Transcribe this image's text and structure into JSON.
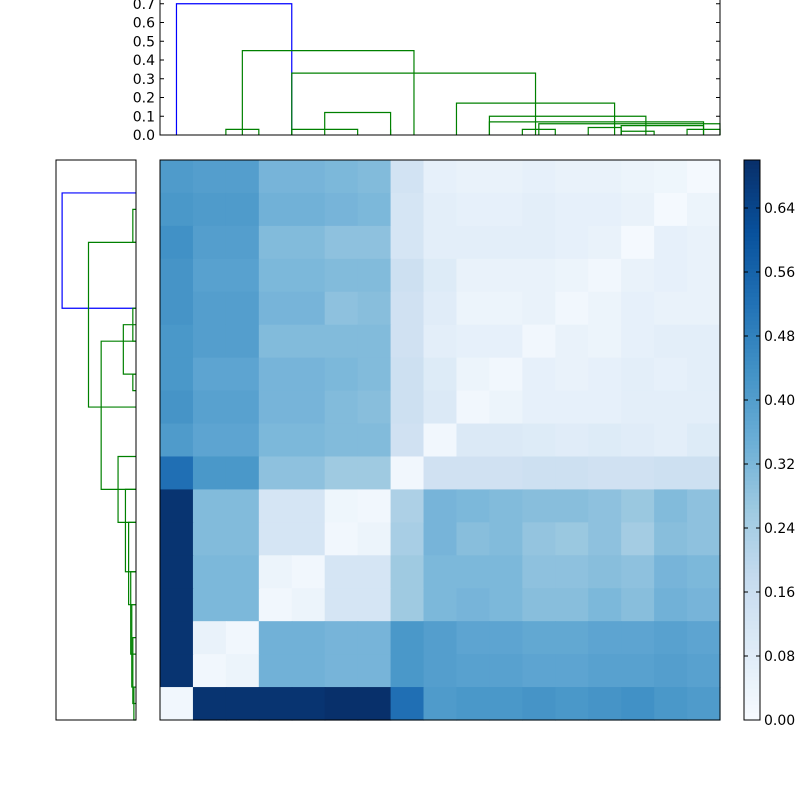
{
  "chart_data": [
    {
      "type": "dendrogram",
      "orientation": "top",
      "yticks": [
        "0.0",
        "0.1",
        "0.2",
        "0.3",
        "0.4",
        "0.5",
        "0.6",
        "0.7"
      ],
      "ylim": [
        0,
        0.72
      ],
      "colors": {
        "root": "#0000ff",
        "cluster": "#008000"
      },
      "leaf_count": 17,
      "links": [
        {
          "left": 0.0,
          "right": 3.5,
          "height": 0.7,
          "color": "root"
        },
        {
          "left": 2.0,
          "right": 7.21,
          "height": 0.45,
          "color": "cluster"
        },
        {
          "left": 1.5,
          "right": 2.5,
          "height": 0.03,
          "color": "cluster"
        },
        {
          "left": 3.5,
          "right": 10.9,
          "height": 0.33,
          "color": "cluster"
        },
        {
          "left": 3.5,
          "right": 5.5,
          "height": 0.03,
          "color": "cluster"
        },
        {
          "left": 4.5,
          "right": 6.5,
          "height": 0.12,
          "color": "cluster"
        },
        {
          "left": 6.5,
          "right": 6.5,
          "height": 0.03,
          "color": "cluster"
        },
        {
          "left": 8.5,
          "right": 13.3,
          "height": 0.17,
          "color": "cluster"
        },
        {
          "left": 9.5,
          "right": 14.25,
          "height": 0.1,
          "color": "cluster"
        },
        {
          "left": 9.5,
          "right": 16.0,
          "height": 0.07,
          "color": "cluster"
        },
        {
          "left": 11.0,
          "right": 16.5,
          "height": 0.06,
          "color": "cluster"
        },
        {
          "left": 13.5,
          "right": 16.0,
          "height": 0.05,
          "color": "cluster"
        },
        {
          "left": 10.5,
          "right": 11.5,
          "height": 0.03,
          "color": "cluster"
        },
        {
          "left": 12.5,
          "right": 13.5,
          "height": 0.04,
          "color": "cluster"
        },
        {
          "left": 13.5,
          "right": 14.5,
          "height": 0.02,
          "color": "cluster"
        },
        {
          "left": 15.5,
          "right": 16.5,
          "height": 0.03,
          "color": "cluster"
        }
      ]
    },
    {
      "type": "dendrogram",
      "orientation": "left",
      "colors": {
        "root": "#0000ff",
        "cluster": "#008000"
      },
      "leaf_count": 17,
      "links": [
        {
          "left": 0.5,
          "right": 4.0,
          "height": 0.7,
          "color": "root"
        },
        {
          "left": 2.0,
          "right": 7.0,
          "height": 0.45,
          "color": "cluster"
        },
        {
          "left": 1.0,
          "right": 2.0,
          "height": 0.03,
          "color": "cluster"
        },
        {
          "left": 5.0,
          "right": 9.5,
          "height": 0.33,
          "color": "cluster"
        },
        {
          "left": 4.5,
          "right": 6.0,
          "height": 0.12,
          "color": "cluster"
        },
        {
          "left": 4.0,
          "right": 5.0,
          "height": 0.03,
          "color": "cluster"
        },
        {
          "left": 6.0,
          "right": 6.5,
          "height": 0.03,
          "color": "cluster"
        },
        {
          "left": 8.5,
          "right": 10.5,
          "height": 0.17,
          "color": "cluster"
        },
        {
          "left": 9.5,
          "right": 12.0,
          "height": 0.1,
          "color": "cluster"
        },
        {
          "left": 10.5,
          "right": 13.0,
          "height": 0.07,
          "color": "cluster"
        },
        {
          "left": 12.0,
          "right": 14.5,
          "height": 0.05,
          "color": "cluster"
        },
        {
          "left": 13.0,
          "right": 15.5,
          "height": 0.04,
          "color": "cluster"
        },
        {
          "left": 14.0,
          "right": 16.0,
          "height": 0.03,
          "color": "cluster"
        },
        {
          "left": 15.5,
          "right": 16.5,
          "height": 0.02,
          "color": "cluster"
        }
      ]
    },
    {
      "type": "heatmap",
      "colormap": "Blues",
      "vmin": 0,
      "vmax": 0.7,
      "colorbar_ticks": [
        "0.00",
        "0.08",
        "0.16",
        "0.24",
        "0.32",
        "0.40",
        "0.48",
        "0.56",
        "0.64"
      ],
      "rows": [
        [
          0.41,
          0.4,
          0.4,
          0.33,
          0.33,
          0.32,
          0.31,
          0.13,
          0.06,
          0.05,
          0.05,
          0.06,
          0.05,
          0.05,
          0.04,
          0.03,
          0.01
        ],
        [
          0.42,
          0.41,
          0.41,
          0.34,
          0.34,
          0.33,
          0.32,
          0.12,
          0.07,
          0.06,
          0.06,
          0.07,
          0.06,
          0.06,
          0.05,
          0.01,
          0.04
        ],
        [
          0.44,
          0.4,
          0.4,
          0.31,
          0.31,
          0.29,
          0.29,
          0.12,
          0.07,
          0.07,
          0.07,
          0.07,
          0.06,
          0.05,
          0.01,
          0.06,
          0.05
        ],
        [
          0.43,
          0.39,
          0.39,
          0.32,
          0.32,
          0.31,
          0.31,
          0.15,
          0.09,
          0.05,
          0.05,
          0.05,
          0.04,
          0.02,
          0.05,
          0.06,
          0.05
        ],
        [
          0.43,
          0.4,
          0.4,
          0.33,
          0.33,
          0.29,
          0.3,
          0.14,
          0.08,
          0.04,
          0.04,
          0.05,
          0.02,
          0.04,
          0.06,
          0.05,
          0.05
        ],
        [
          0.42,
          0.4,
          0.4,
          0.31,
          0.31,
          0.31,
          0.31,
          0.14,
          0.07,
          0.06,
          0.06,
          0.02,
          0.05,
          0.04,
          0.06,
          0.07,
          0.07
        ],
        [
          0.42,
          0.38,
          0.38,
          0.33,
          0.33,
          0.32,
          0.31,
          0.15,
          0.09,
          0.04,
          0.02,
          0.06,
          0.05,
          0.06,
          0.07,
          0.06,
          0.07
        ],
        [
          0.43,
          0.39,
          0.39,
          0.33,
          0.33,
          0.31,
          0.3,
          0.15,
          0.1,
          0.02,
          0.04,
          0.06,
          0.06,
          0.06,
          0.07,
          0.07,
          0.07
        ],
        [
          0.41,
          0.38,
          0.38,
          0.32,
          0.32,
          0.31,
          0.31,
          0.14,
          0.02,
          0.1,
          0.1,
          0.09,
          0.08,
          0.09,
          0.08,
          0.07,
          0.09
        ],
        [
          0.53,
          0.42,
          0.42,
          0.29,
          0.29,
          0.26,
          0.26,
          0.02,
          0.14,
          0.14,
          0.14,
          0.15,
          0.15,
          0.14,
          0.14,
          0.15,
          0.15
        ],
        [
          0.69,
          0.31,
          0.31,
          0.12,
          0.12,
          0.03,
          0.02,
          0.23,
          0.33,
          0.32,
          0.31,
          0.3,
          0.3,
          0.29,
          0.27,
          0.31,
          0.29
        ],
        [
          0.69,
          0.31,
          0.31,
          0.12,
          0.12,
          0.02,
          0.04,
          0.24,
          0.33,
          0.3,
          0.31,
          0.28,
          0.27,
          0.29,
          0.25,
          0.3,
          0.29
        ],
        [
          0.69,
          0.32,
          0.32,
          0.04,
          0.02,
          0.12,
          0.12,
          0.26,
          0.32,
          0.32,
          0.32,
          0.29,
          0.29,
          0.3,
          0.29,
          0.33,
          0.32
        ],
        [
          0.69,
          0.32,
          0.32,
          0.02,
          0.04,
          0.12,
          0.12,
          0.26,
          0.32,
          0.33,
          0.32,
          0.3,
          0.3,
          0.32,
          0.3,
          0.34,
          0.33
        ],
        [
          0.69,
          0.05,
          0.02,
          0.34,
          0.34,
          0.33,
          0.33,
          0.42,
          0.4,
          0.38,
          0.38,
          0.37,
          0.37,
          0.38,
          0.38,
          0.39,
          0.38
        ],
        [
          0.69,
          0.02,
          0.04,
          0.34,
          0.34,
          0.33,
          0.33,
          0.42,
          0.4,
          0.39,
          0.39,
          0.38,
          0.38,
          0.39,
          0.39,
          0.4,
          0.39
        ],
        [
          0.02,
          0.69,
          0.69,
          0.69,
          0.69,
          0.7,
          0.7,
          0.53,
          0.41,
          0.42,
          0.42,
          0.43,
          0.42,
          0.43,
          0.44,
          0.42,
          0.41
        ]
      ]
    }
  ]
}
